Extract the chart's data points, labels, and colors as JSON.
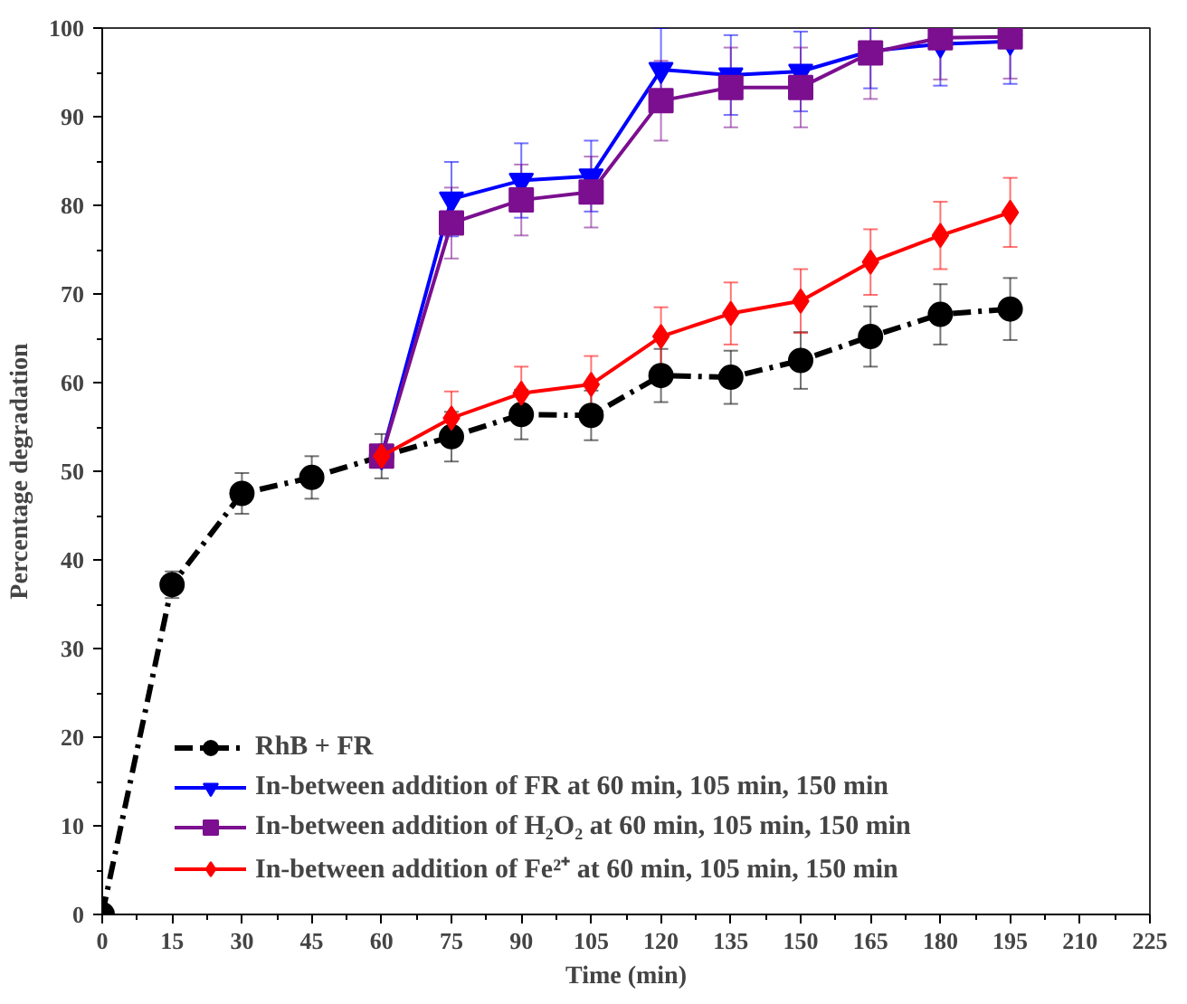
{
  "chart_data": {
    "type": "line",
    "xlabel": "Time (min)",
    "ylabel": "Percentage degradation",
    "xlim": [
      0,
      225
    ],
    "xticks": [
      0,
      15,
      30,
      45,
      60,
      75,
      90,
      105,
      120,
      135,
      150,
      165,
      180,
      195,
      210,
      225
    ],
    "ylim": [
      0,
      100
    ],
    "yticks": [
      0,
      10,
      20,
      30,
      40,
      50,
      60,
      70,
      80,
      90,
      100
    ],
    "grid": false,
    "legend": "bottom left",
    "series": [
      {
        "name": "RhB + FR",
        "color": "#000000",
        "marker": "circle",
        "line_style": "dashed",
        "x": [
          0,
          15,
          30,
          45,
          60,
          75,
          90,
          105,
          120,
          135,
          150,
          165,
          180,
          195
        ],
        "values": [
          0,
          37.2,
          47.5,
          49.3,
          51.7,
          53.9,
          56.4,
          56.3,
          60.8,
          60.6,
          62.5,
          65.2,
          67.7,
          68.3
        ],
        "errors": [
          null,
          1.5,
          2.3,
          2.4,
          2.5,
          2.8,
          2.8,
          2.8,
          3,
          3,
          3.2,
          3.4,
          3.4,
          3.5
        ]
      },
      {
        "name": "In-between addition of FR at 60 min, 105 min, 150 min",
        "color": "#0000ff",
        "marker": "triangle_down",
        "line_style": "solid",
        "x": [
          60,
          75,
          90,
          105,
          120,
          135,
          150,
          165,
          180,
          195
        ],
        "values": [
          51.7,
          80.7,
          82.8,
          83.3,
          95.3,
          94.7,
          95.1,
          97.4,
          98.2,
          98.5
        ],
        "errors": [
          null,
          4.2,
          4.2,
          4.0,
          4.7,
          4.5,
          4.5,
          [
            93.2,
            100
          ],
          [
            93.5,
            100
          ],
          [
            93.7,
            100
          ]
        ]
      },
      {
        "name": "In-between addition of H₂O₂ at 60 min, 105 min, 150 min",
        "color": "#7b0f8f",
        "marker": "square",
        "line_style": "solid",
        "x": [
          60,
          75,
          90,
          105,
          120,
          135,
          150,
          165,
          180,
          195
        ],
        "values": [
          51.7,
          78.0,
          80.6,
          81.5,
          91.8,
          93.3,
          93.3,
          97.2,
          98.9,
          99.0
        ],
        "errors": [
          null,
          4,
          4,
          4,
          4.5,
          4.5,
          4.5,
          [
            92.0,
            100
          ],
          [
            94.2,
            100
          ],
          [
            94.3,
            100
          ]
        ]
      },
      {
        "name": "In-between addition of Fe²⁺ at 60 min, 105 min, 150 min",
        "color": "#ff0000",
        "marker": "diamond",
        "line_style": "solid",
        "x": [
          60,
          75,
          90,
          105,
          120,
          135,
          150,
          165,
          180,
          195
        ],
        "values": [
          51.7,
          56.0,
          58.8,
          59.8,
          65.2,
          67.8,
          69.2,
          73.6,
          76.6,
          79.2
        ],
        "errors": [
          null,
          3,
          3,
          3.2,
          3.3,
          3.5,
          3.6,
          3.7,
          3.8,
          3.9
        ]
      }
    ]
  }
}
